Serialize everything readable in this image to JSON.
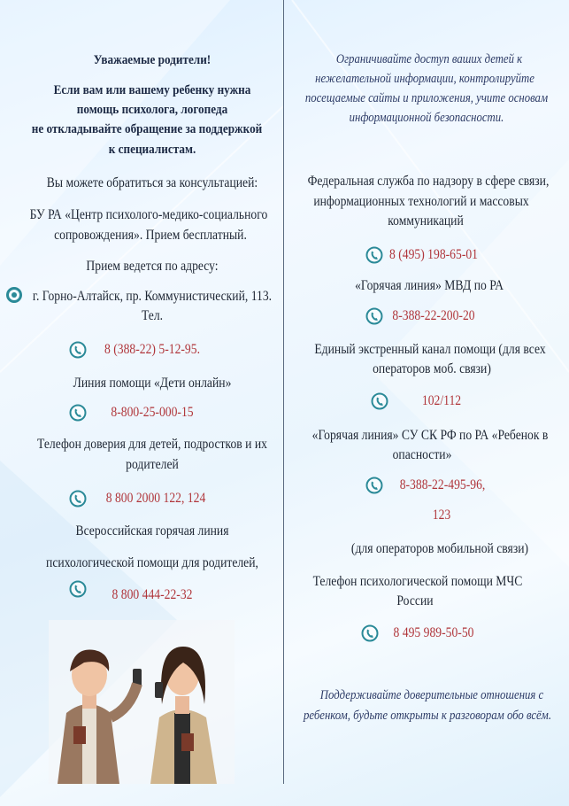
{
  "left": {
    "greeting": "Уважаемые родители!",
    "appeal": [
      "Если вам или вашему ребенку нужна",
      "помощь психолога, логопеда",
      "не откладывайте обращение за поддержкой",
      "к специалистам."
    ],
    "consult": "Вы можете обратиться за консультацией:",
    "center": [
      "БУ РА «Центр психолого-медико-социального",
      "сопровождения». Прием бесплатный."
    ],
    "address_label": "Прием ведется по адресу:",
    "address": "г. Горно-Алтайск, пр. Коммунистический, 113.",
    "tel_label": "Тел.",
    "phone1": "8 (388-22) 5-12-95.",
    "line_online": "Линия помощи «Дети онлайн»",
    "phone2": "8-800-25-000-15",
    "trust": [
      "Телефон доверия для детей, подростков и их",
      "родителей"
    ],
    "phone3": "8 800 2000 122, 124",
    "allrussia": [
      "Всероссийская горячая линия",
      "психологической помощи для родителей,"
    ],
    "phone4": "8 800 444-22-32"
  },
  "right": {
    "advice": [
      "Ограничивайте доступ ваших детей к",
      "нежелательной информации, контролируйте",
      "посещаемые сайты и приложения, учите основам",
      "информационной безопасности."
    ],
    "rkn": [
      "Федеральная служба по надзору в сфере связи,",
      "информационных технологий и массовых",
      "коммуникаций"
    ],
    "phone1": "8 (495) 198-65-01",
    "mvd": "«Горячая линия» МВД по РА",
    "phone2": "8-388-22-200-20",
    "unified": [
      "Единый экстренный канал помощи (для всех",
      "операторов моб. связи)"
    ],
    "phone3": "102/112",
    "sk": [
      "«Горячая линия» СУ СК РФ по РА «Ребенок в",
      "опасности»"
    ],
    "phone4a": "8-388-22-495-96,",
    "phone4b": "123",
    "mobile_note": "(для операторов мобильной связи)",
    "mchs": [
      "Телефон психологической помощи МЧС",
      "России"
    ],
    "phone5": "8 495 989-50-50",
    "closing": [
      "Поддерживайте доверительные отношения с",
      "ребенком, будьте открыты к разговорам обо всём."
    ]
  },
  "icons": {
    "phone": "phone-icon",
    "location": "location-pin-icon"
  },
  "colors": {
    "phone_text": "#b0353a",
    "icon": "#2b8a98",
    "heading": "#1c2944"
  }
}
